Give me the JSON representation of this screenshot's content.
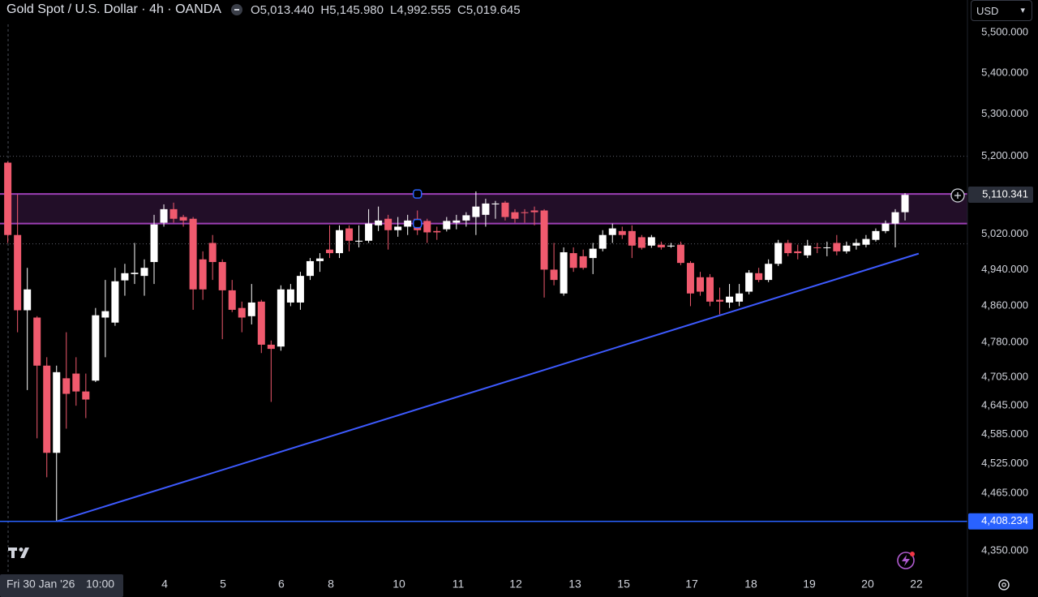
{
  "header": {
    "title": "Gold Spot / U.S. Dollar · 4h · OANDA",
    "ohlc": [
      {
        "label": "O",
        "value": "5,013.440"
      },
      {
        "label": "H",
        "value": "5,145.980"
      },
      {
        "label": "L",
        "value": "4,992.555"
      },
      {
        "label": "C",
        "value": "5,019.645"
      }
    ]
  },
  "currency": "USD",
  "date_badge": {
    "date": "Fri 30 Jan '26",
    "time": "10:00"
  },
  "chart_data": {
    "type": "candlestick",
    "log_scale": true,
    "up_color": "#ffffff",
    "down_color": "#f05a6e",
    "xlim": [
      -0.8,
      98.4
    ],
    "xticks": [
      {
        "value": 16.08,
        "label": "4"
      },
      {
        "value": 22.07,
        "label": "5"
      },
      {
        "value": 28.05,
        "label": "6"
      },
      {
        "value": 33.13,
        "label": "8"
      },
      {
        "value": 40.11,
        "label": "10"
      },
      {
        "value": 46.18,
        "label": "11"
      },
      {
        "value": 52.09,
        "label": "12"
      },
      {
        "value": 58.16,
        "label": "13"
      },
      {
        "value": 63.15,
        "label": "15"
      },
      {
        "value": 70.13,
        "label": "17"
      },
      {
        "value": 76.2,
        "label": "18"
      },
      {
        "value": 82.19,
        "label": "19"
      },
      {
        "value": 88.17,
        "label": "20"
      },
      {
        "value": 93.16,
        "label": "22"
      }
    ],
    "ylim": [
      4307,
      5581
    ],
    "yticks": [
      {
        "value": 5500,
        "label": "5,500.000"
      },
      {
        "value": 5400,
        "label": "5,400.000"
      },
      {
        "value": 5300,
        "label": "5,300.000"
      },
      {
        "value": 5200,
        "label": "5,200.000"
      },
      {
        "value": 5020,
        "label": "5,020.000"
      },
      {
        "value": 4940,
        "label": "4,940.000"
      },
      {
        "value": 4860,
        "label": "4,860.000"
      },
      {
        "value": 4780,
        "label": "4,780.000"
      },
      {
        "value": 4705,
        "label": "4,705.000"
      },
      {
        "value": 4645,
        "label": "4,645.000"
      },
      {
        "value": 4585,
        "label": "4,585.000"
      },
      {
        "value": 4525,
        "label": "4,525.000"
      },
      {
        "value": 4465,
        "label": "4,465.000"
      },
      {
        "value": 4350,
        "label": "4,350.000"
      }
    ],
    "candles": {
      "open": [
        5185,
        5018,
        4850,
        4834,
        4730,
        4547,
        4703,
        4713,
        4675,
        4698,
        4834,
        4823,
        4916,
        4930,
        4926,
        4957,
        5046,
        5077,
        5059,
        5055,
        4963,
        5000,
        4957,
        4894,
        4855,
        4837,
        4869,
        4775,
        4771,
        4867,
        4867,
        4926,
        4959,
        4985,
        4977,
        5033,
        5003,
        5005,
        5040,
        5055,
        5029,
        5037,
        5055,
        5050,
        5027,
        5031,
        5046,
        5051,
        5059,
        5064,
        5088,
        5092,
        5070,
        5070,
        5074,
        5074,
        4940,
        4887,
        4977,
        4970,
        4966,
        4987,
        5018,
        5027,
        5027,
        5013,
        4994,
        4996,
        4992,
        4996,
        4955,
        4923,
        4923,
        4873,
        4867,
        4869,
        4891,
        4932,
        4917,
        4953,
        5000,
        4981,
        4972,
        4990,
        4989,
        5000,
        4981,
        4994,
        4996,
        5007,
        5027,
        5044,
        5070
      ],
      "high": [
        5188,
        5111,
        4944,
        4837,
        4748,
        4730,
        4802,
        4748,
        4713,
        4855,
        4917,
        4944,
        4953,
        5000,
        4963,
        5064,
        5088,
        5092,
        5064,
        5059,
        4981,
        5018,
        4963,
        4917,
        4869,
        4908,
        4873,
        4784,
        4905,
        4908,
        4935,
        4966,
        4977,
        5040,
        5040,
        5040,
        5040,
        5077,
        5083,
        5064,
        5059,
        5064,
        5074,
        5055,
        5037,
        5059,
        5064,
        5070,
        5118,
        5101,
        5096,
        5096,
        5077,
        5077,
        5083,
        5077,
        5000,
        4990,
        4990,
        4985,
        5000,
        5029,
        5044,
        5037,
        5040,
        5018,
        5018,
        5003,
        5000,
        5003,
        4959,
        4935,
        4930,
        4900,
        4908,
        4908,
        4939,
        4944,
        4963,
        5007,
        5007,
        4996,
        5007,
        5000,
        5003,
        5018,
        5003,
        5009,
        5018,
        5033,
        5051,
        5077,
        5114
      ],
      "low": [
        5000,
        4802,
        4678,
        4577,
        4497,
        4408,
        4597,
        4645,
        4619,
        4695,
        4748,
        4816,
        4882,
        4908,
        4882,
        4908,
        5037,
        5046,
        5037,
        4851,
        4873,
        4917,
        4787,
        4846,
        4802,
        4819,
        4757,
        4653,
        4762,
        4859,
        4851,
        4917,
        4935,
        4966,
        4966,
        4981,
        4990,
        5000,
        5027,
        4985,
        5014,
        5018,
        5018,
        5000,
        5007,
        5026,
        5031,
        5037,
        5018,
        5037,
        5055,
        5051,
        5046,
        5046,
        5040,
        4878,
        4905,
        4882,
        4935,
        4940,
        4930,
        4981,
        5000,
        5009,
        4966,
        4985,
        4989,
        4985,
        4989,
        4950,
        4859,
        4882,
        4859,
        4841,
        4855,
        4859,
        4885,
        4912,
        4912,
        4948,
        4970,
        4963,
        4966,
        4977,
        4970,
        4972,
        4976,
        4985,
        4990,
        5003,
        5022,
        4990,
        5051
      ],
      "close": [
        5018,
        4850,
        4896,
        4730,
        4547,
        4716,
        4670,
        4675,
        4658,
        4839,
        4848,
        4914,
        4932,
        4933,
        4944,
        5042,
        5077,
        5055,
        5051,
        4896,
        4896,
        4957,
        4894,
        4851,
        4834,
        4867,
        4775,
        4766,
        4896,
        4896,
        4926,
        4959,
        4965,
        4977,
        5029,
        5005,
        5005,
        5044,
        5051,
        5029,
        5037,
        5051,
        5029,
        5024,
        5024,
        5050,
        5051,
        5063,
        5083,
        5090,
        5090,
        5059,
        5055,
        5068,
        5070,
        4940,
        4917,
        4979,
        4944,
        4944,
        4987,
        5018,
        5033,
        5018,
        4994,
        4989,
        5013,
        4990,
        4994,
        4955,
        4887,
        4891,
        4869,
        4869,
        4880,
        4887,
        4933,
        4917,
        4953,
        5000,
        4977,
        4977,
        4994,
        4989,
        4990,
        4981,
        4994,
        5000,
        5009,
        5027,
        5044,
        5070,
        5110
      ]
    },
    "zone": {
      "range": [
        5044,
        5112
      ],
      "color": "#9c3fb5"
    },
    "trendline": {
      "x": [
        5,
        93.4
      ],
      "y": [
        4408,
        4976
      ],
      "color": "#3d5afe"
    },
    "dotted_lines": [
      5200,
      4998
    ],
    "price_badges": [
      {
        "value": 5110.341,
        "label": "5,110.341",
        "color": "#2a2e39"
      },
      {
        "value": 4408.234,
        "label": "4,408.234",
        "color": "#2962ff"
      }
    ]
  }
}
